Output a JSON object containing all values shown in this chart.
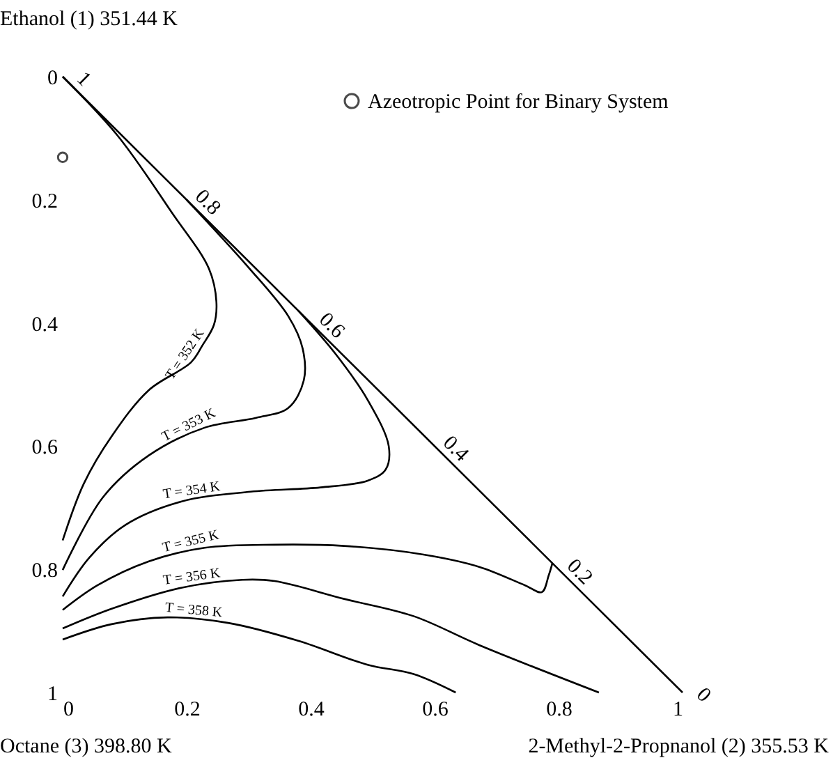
{
  "chart_data": {
    "type": "line",
    "xlabel": "2-Methyl-2-Propnanol (2) 355.53 K",
    "ylabel": "Ethanol (1) 351.44 K",
    "xlim": [
      0,
      1
    ],
    "ylim": [
      1,
      0
    ],
    "xticks": [
      0,
      0.2,
      0.4,
      0.6,
      0.8,
      1
    ],
    "yticks": [
      0,
      0.2,
      0.4,
      0.6,
      0.8,
      1
    ],
    "grid": false,
    "legend": "top right",
    "marker": "none",
    "line_style": "solid",
    "series": [
      {
        "color": "#000000",
        "x": [
          0,
          1
        ],
        "values": [
          0,
          1
        ]
      },
      {
        "name": "T = 352 K",
        "color": "#000000",
        "x": [
          0,
          0.088,
          0.177,
          0.236,
          0.248,
          0.244,
          0.225,
          0.207,
          0.139,
          0.079,
          0.034,
          0
        ],
        "values": [
          0,
          0.095,
          0.222,
          0.312,
          0.366,
          0.403,
          0.437,
          0.464,
          0.509,
          0.584,
          0.661,
          0.753
        ]
      },
      {
        "name": "T = 353 K",
        "color": "#000000",
        "x": [
          0.2,
          0.3,
          0.364,
          0.387,
          0.389,
          0.364,
          0.312,
          0.229,
          0.139,
          0.065,
          0
        ],
        "values": [
          0.2,
          0.31,
          0.389,
          0.441,
          0.493,
          0.538,
          0.554,
          0.57,
          0.615,
          0.683,
          0.801
        ]
      },
      {
        "name": "T = 354 K",
        "color": "#000000",
        "x": [
          0.38,
          0.44,
          0.492,
          0.526,
          0.521,
          0.492,
          0.416,
          0.303,
          0.191,
          0.101,
          0.043,
          0
        ],
        "values": [
          0.38,
          0.45,
          0.525,
          0.6,
          0.638,
          0.656,
          0.667,
          0.674,
          0.69,
          0.728,
          0.781,
          0.844
        ]
      },
      {
        "name": "T = 355 K",
        "color": "#000000",
        "x": [
          0.79,
          0.784,
          0.773,
          0.746,
          0.672,
          0.582,
          0.454,
          0.342,
          0.229,
          0.139,
          0.056,
          0
        ],
        "values": [
          0.79,
          0.81,
          0.837,
          0.826,
          0.796,
          0.776,
          0.762,
          0.76,
          0.765,
          0.787,
          0.826,
          0.866
        ]
      },
      {
        "name": "T = 356 K",
        "color": "#000000",
        "x": [
          0.865,
          0.672,
          0.566,
          0.454,
          0.342,
          0.29,
          0.191,
          0.079,
          0
        ],
        "values": [
          1,
          0.923,
          0.876,
          0.848,
          0.819,
          0.817,
          0.83,
          0.864,
          0.896
        ]
      },
      {
        "name": "T = 358 K",
        "color": "#000000",
        "x": [
          0.634,
          0.566,
          0.492,
          0.38,
          0.267,
          0.169,
          0.079,
          0
        ],
        "values": [
          1,
          0.97,
          0.955,
          0.916,
          0.887,
          0.878,
          0.889,
          0.914
        ]
      },
      {
        "type": "scatter",
        "name": "Azeotropic Point for Binary System",
        "color": "#000000",
        "marker": "circle",
        "x": [
          0
        ],
        "values": [
          0.131
        ]
      }
    ],
    "annotations": [
      {
        "text": "1",
        "x": 0,
        "y": 0
      },
      {
        "text": "0.8",
        "x": 0.2,
        "y": 0.2
      },
      {
        "text": "0.6",
        "x": 0.4,
        "y": 0.4
      },
      {
        "text": "0.4",
        "x": 0.6,
        "y": 0.6
      },
      {
        "text": "0.2",
        "x": 0.8,
        "y": 0.8
      },
      {
        "text": "0",
        "x": 1,
        "y": 1
      },
      "Octane (3) 398.80 K"
    ]
  }
}
